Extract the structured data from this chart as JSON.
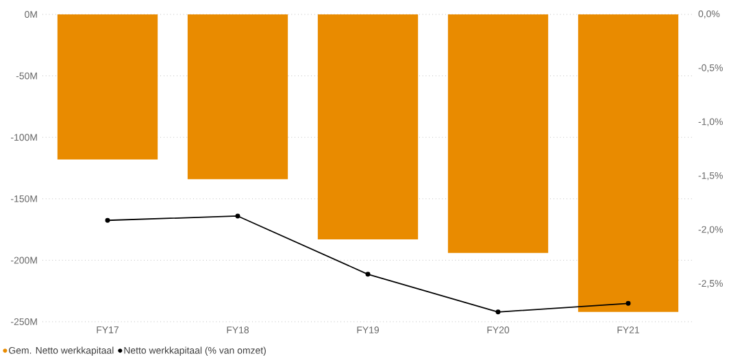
{
  "chart_data": {
    "type": "bar",
    "categories": [
      "FY17",
      "FY18",
      "FY19",
      "FY20",
      "FY21"
    ],
    "series": [
      {
        "name": "Gem. Netto werkkapitaal",
        "color": "#e98b00",
        "values": [
          -118,
          -134,
          -183,
          -194,
          -242
        ]
      },
      {
        "name": "Netto werkkapitaal (% van omzet)",
        "type": "line",
        "axis": "y2",
        "color": "#000000",
        "values": [
          -1.91,
          -1.87,
          -2.41,
          -2.76,
          -2.68
        ]
      }
    ],
    "ylim": [
      -250,
      0
    ],
    "yticks": [
      {
        "value": -250,
        "label": "-250M"
      },
      {
        "value": -200,
        "label": "-200M"
      },
      {
        "value": -150,
        "label": "-150M"
      },
      {
        "value": -100,
        "label": "-100M"
      },
      {
        "value": -50,
        "label": "-50M"
      },
      {
        "value": 0,
        "label": "0M"
      }
    ],
    "y2lim": [
      -2.85,
      0
    ],
    "y2ticks": [
      {
        "value": -2.5,
        "label": "-2,5%"
      },
      {
        "value": -2.0,
        "label": "-2,0%"
      },
      {
        "value": -1.5,
        "label": "-1,5%"
      },
      {
        "value": -1.0,
        "label": "-1,0%"
      },
      {
        "value": -0.5,
        "label": "-0,5%"
      },
      {
        "value": 0,
        "label": "0,0%"
      }
    ],
    "grid": "y",
    "legend": "bottom left",
    "marker": "circle"
  }
}
